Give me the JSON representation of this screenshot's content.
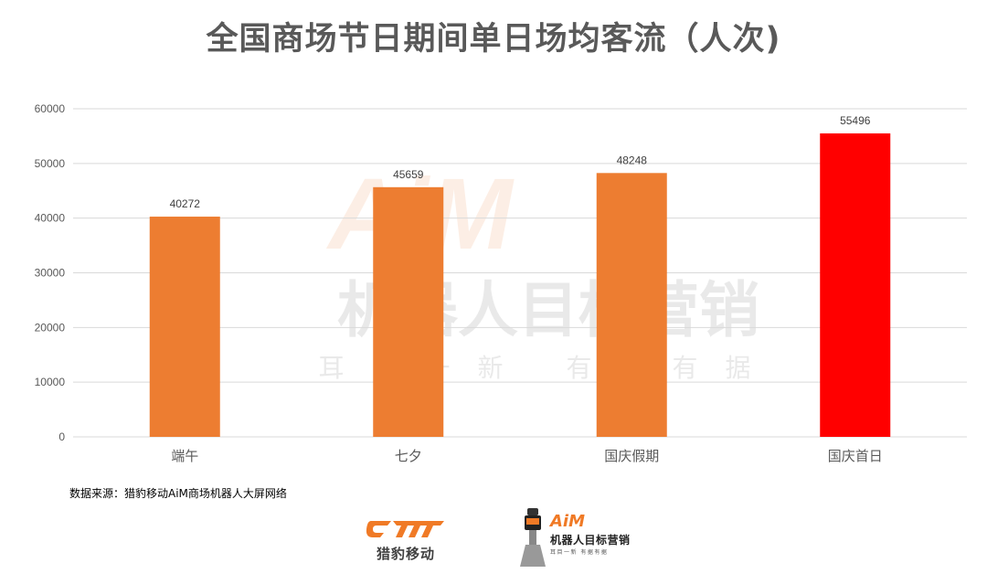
{
  "title": "全国商场节日期间单日场均客流（人次)",
  "source": "数据来源：猎豹移动AiM商场机器人大屏网络",
  "logos": {
    "cheetah_name": "猎豹移动",
    "aim_brand": "AiM",
    "aim_name": "机器人目标营销",
    "aim_slogan": "耳目一新  有据有据"
  },
  "watermark": {
    "brand": "AiM",
    "name": "机器人目标营销",
    "slogan": "耳目一新  有据有据"
  },
  "colors": {
    "bar_default": "#ed7d31",
    "bar_highlight": "#ff0000",
    "grid": "#d9d9d9",
    "axis_text": "#595959"
  },
  "chart_data": {
    "type": "bar",
    "categories": [
      "端午",
      "七夕",
      "国庆假期",
      "国庆首日"
    ],
    "values": [
      40272,
      45659,
      48248,
      55496
    ],
    "highlight_index": 3,
    "ylim": [
      0,
      60000
    ],
    "yticks": [
      0,
      10000,
      20000,
      30000,
      40000,
      50000,
      60000
    ],
    "grid": true,
    "legend": "none"
  }
}
